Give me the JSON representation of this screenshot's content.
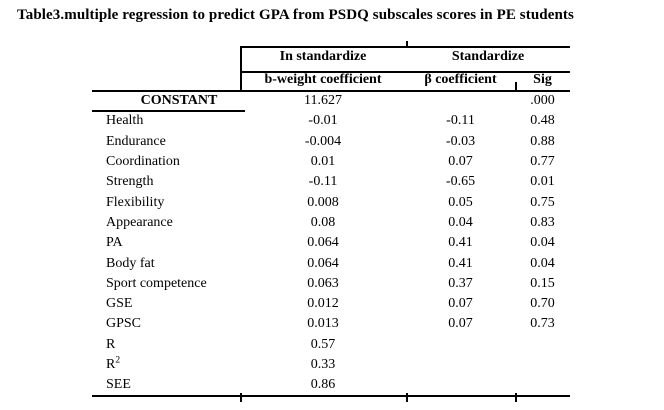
{
  "title": "Table3.multiple regression to predict GPA from PSDQ subscales scores in PE students",
  "colors": {
    "background": "#ffffff",
    "text": "#000000",
    "rule": "#000000"
  },
  "table": {
    "group_headers": [
      {
        "label": "In standardize"
      },
      {
        "label": "Standardize"
      }
    ],
    "column_headers": {
      "b_weight": "b-weight coefficient",
      "beta": "β coefficient",
      "sig": "Sig"
    },
    "rows": [
      {
        "label": "CONSTANT",
        "b": "11.627",
        "beta": "",
        "sig": ".000"
      },
      {
        "label": "Health",
        "b": "-0.01",
        "beta": "-0.11",
        "sig": "0.48"
      },
      {
        "label": "Endurance",
        "b": "-0.004",
        "beta": "-0.03",
        "sig": "0.88"
      },
      {
        "label": "Coordination",
        "b": "0.01",
        "beta": "0.07",
        "sig": "0.77"
      },
      {
        "label": "Strength",
        "b": "-0.11",
        "beta": "-0.65",
        "sig": "0.01"
      },
      {
        "label": "Flexibility",
        "b": "0.008",
        "beta": "0.05",
        "sig": "0.75"
      },
      {
        "label": "Appearance",
        "b": "0.08",
        "beta": "0.04",
        "sig": "0.83"
      },
      {
        "label": "PA",
        "b": "0.064",
        "beta": "0.41",
        "sig": "0.04"
      },
      {
        "label": "Body fat",
        "b": "0.064",
        "beta": "0.41",
        "sig": "0.04"
      },
      {
        "label": "Sport competence",
        "b": "0.063",
        "beta": "0.37",
        "sig": "0.15"
      },
      {
        "label": "GSE",
        "b": "0.012",
        "beta": "0.07",
        "sig": "0.70"
      },
      {
        "label": "GPSC",
        "b": "0.013",
        "beta": "0.07",
        "sig": "0.73"
      },
      {
        "label": "R",
        "b": "0.57",
        "beta": "",
        "sig": ""
      },
      {
        "label": "R",
        "sup": "2",
        "b": "0.33",
        "beta": "",
        "sig": ""
      },
      {
        "label": "SEE",
        "b": "0.86",
        "beta": "",
        "sig": ""
      }
    ]
  }
}
